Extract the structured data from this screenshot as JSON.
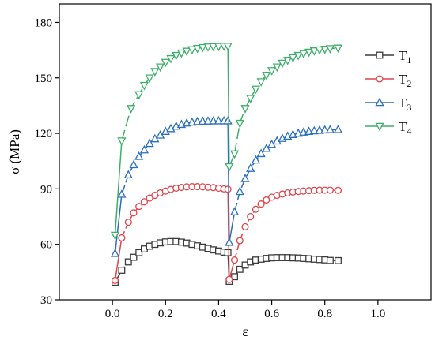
{
  "chart_data": {
    "type": "line",
    "title": "",
    "xlabel": "ε",
    "ylabel": "σ (MPa)",
    "xlim": [
      -0.2,
      1.2
    ],
    "ylim": [
      30,
      190
    ],
    "xticks": [
      0.0,
      0.2,
      0.4,
      0.6,
      0.8,
      1.0
    ],
    "xtick_labels": [
      "0.0",
      "0.2",
      "0.4",
      "0.6",
      "0.8",
      "1.0"
    ],
    "yticks": [
      30,
      60,
      90,
      120,
      150,
      180
    ],
    "ytick_labels": [
      "30",
      "60",
      "90",
      "120",
      "150",
      "180"
    ],
    "grid": false,
    "legend_position": "top-right",
    "series": [
      {
        "name": "T1",
        "label_main": "T",
        "label_sub": "1",
        "color": "#3c3c3c",
        "marker": "square",
        "dash": "6,4",
        "segments": [
          {
            "x": [
              0.01,
              0.035,
              0.06,
              0.08,
              0.1,
              0.12,
              0.14,
              0.16,
              0.18,
              0.2,
              0.22,
              0.24,
              0.26,
              0.28,
              0.3,
              0.32,
              0.34,
              0.36,
              0.38,
              0.4,
              0.42,
              0.435
            ],
            "y": [
              39.5,
              46,
              50.5,
              53,
              55.5,
              57.5,
              59,
              60,
              60.8,
              61.3,
              61.5,
              61.5,
              61.2,
              60.7,
              60,
              59.2,
              58.5,
              57.8,
              57,
              56.4,
              55.8,
              55.5
            ]
          },
          {
            "x": [
              0.44,
              0.46,
              0.48,
              0.5,
              0.52,
              0.54,
              0.56,
              0.58,
              0.6,
              0.62,
              0.64,
              0.66,
              0.68,
              0.7,
              0.72,
              0.74,
              0.76,
              0.78,
              0.8,
              0.82,
              0.85
            ],
            "y": [
              40,
              42.5,
              46.5,
              48.8,
              50.5,
              51.5,
              52,
              52.4,
              52.7,
              52.8,
              52.8,
              52.8,
              52.7,
              52.6,
              52.4,
              52.2,
              52,
              51.8,
              51.6,
              51.3,
              51.2
            ]
          }
        ]
      },
      {
        "name": "T2",
        "label_main": "T",
        "label_sub": "2",
        "color": "#e0434b",
        "marker": "circle",
        "dash": "9,4",
        "segments": [
          {
            "x": [
              0.01,
              0.035,
              0.06,
              0.08,
              0.1,
              0.12,
              0.14,
              0.16,
              0.18,
              0.2,
              0.22,
              0.24,
              0.26,
              0.28,
              0.3,
              0.32,
              0.34,
              0.36,
              0.38,
              0.4,
              0.42,
              0.435
            ],
            "y": [
              40.5,
              63.5,
              72,
              77,
              80.5,
              83,
              85,
              86.5,
              87.8,
              88.8,
              89.7,
              90.4,
              90.8,
              91.1,
              91.2,
              91.2,
              91.1,
              90.9,
              90.7,
              90.4,
              90,
              89.8
            ]
          },
          {
            "x": [
              0.44,
              0.46,
              0.48,
              0.5,
              0.52,
              0.54,
              0.56,
              0.58,
              0.6,
              0.62,
              0.64,
              0.66,
              0.68,
              0.7,
              0.72,
              0.74,
              0.76,
              0.78,
              0.8,
              0.82,
              0.85
            ],
            "y": [
              41,
              51.5,
              62,
              69.5,
              75,
              79,
              81.8,
              84,
              85.5,
              86.5,
              87.2,
              87.8,
              88.3,
              88.6,
              88.8,
              89,
              89.2,
              89.3,
              89.3,
              89.3,
              89.2
            ]
          }
        ]
      },
      {
        "name": "T3",
        "label_main": "T",
        "label_sub": "3",
        "color": "#2a6ebd",
        "marker": "triangle-up",
        "dash": "12,4",
        "segments": [
          {
            "x": [
              0.01,
              0.035,
              0.06,
              0.08,
              0.1,
              0.12,
              0.14,
              0.16,
              0.18,
              0.2,
              0.22,
              0.24,
              0.26,
              0.28,
              0.3,
              0.32,
              0.34,
              0.36,
              0.38,
              0.4,
              0.42,
              0.435
            ],
            "y": [
              55,
              87,
              97.5,
              103,
              107.5,
              111,
              114.5,
              117,
              119,
              121,
              122.5,
              123.8,
              124.8,
              125.5,
              126,
              126.3,
              126.5,
              126.6,
              126.7,
              126.7,
              126.7,
              126.7
            ]
          },
          {
            "x": [
              0.44,
              0.46,
              0.48,
              0.5,
              0.52,
              0.54,
              0.56,
              0.58,
              0.6,
              0.62,
              0.64,
              0.66,
              0.68,
              0.7,
              0.72,
              0.74,
              0.76,
              0.78,
              0.8,
              0.82,
              0.85
            ],
            "y": [
              61,
              77.5,
              88.5,
              95.5,
              101,
              105.5,
              109,
              111.8,
              114,
              115.8,
              117.2,
              118.4,
              119.3,
              120,
              120.6,
              121,
              121.3,
              121.6,
              121.8,
              121.9,
              122
            ]
          }
        ]
      },
      {
        "name": "T4",
        "label_main": "T",
        "label_sub": "4",
        "color": "#3daf6a",
        "marker": "triangle-down",
        "dash": "14,5",
        "segments": [
          {
            "x": [
              0.01,
              0.035,
              0.07,
              0.1,
              0.12,
              0.14,
              0.16,
              0.18,
              0.2,
              0.22,
              0.24,
              0.26,
              0.28,
              0.3,
              0.32,
              0.34,
              0.36,
              0.38,
              0.4,
              0.42,
              0.435
            ],
            "y": [
              65,
              116,
              133.5,
              141,
              146,
              150,
              153.5,
              156,
              158.5,
              160.5,
              162.2,
              163.5,
              164.5,
              165.3,
              166,
              166.5,
              166.8,
              167,
              167.1,
              167.2,
              167.2
            ]
          },
          {
            "x": [
              0.44,
              0.46,
              0.48,
              0.5,
              0.52,
              0.54,
              0.56,
              0.58,
              0.6,
              0.62,
              0.64,
              0.66,
              0.68,
              0.7,
              0.72,
              0.74,
              0.76,
              0.78,
              0.8,
              0.82,
              0.85
            ],
            "y": [
              102,
              109,
              125.5,
              133.5,
              139,
              144,
              148,
              151.5,
              154,
              156,
              158,
              159.6,
              161,
              162.2,
              163.2,
              164,
              164.7,
              165.2,
              165.6,
              165.9,
              166.2
            ]
          }
        ]
      }
    ]
  }
}
